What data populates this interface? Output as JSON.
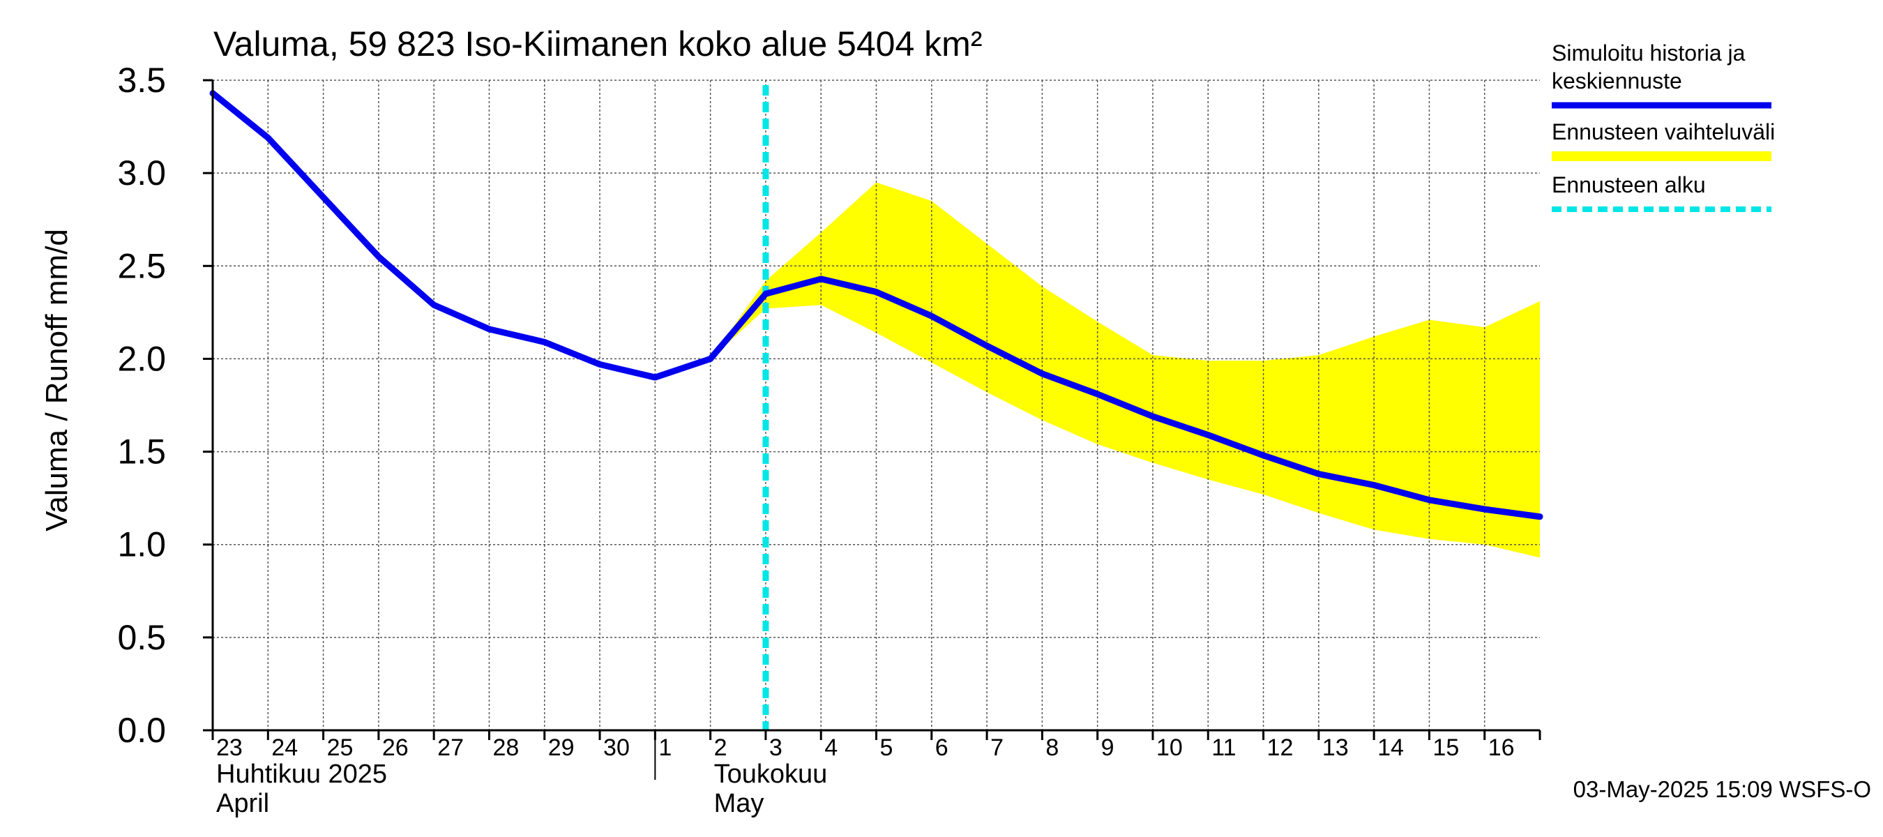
{
  "chart_data": {
    "type": "line",
    "title": "Valuma, 59 823 Iso-Kiimanen koko alue 5404 km²",
    "ylabel": "Valuma / Runoff     mm/d",
    "ylim": [
      0,
      3.5
    ],
    "yticks": [
      "0.0",
      "0.5",
      "1.0",
      "1.5",
      "2.0",
      "2.5",
      "3.0",
      "3.5"
    ],
    "x_range": [
      0,
      24
    ],
    "day_labels": [
      "23",
      "24",
      "25",
      "26",
      "27",
      "28",
      "29",
      "30",
      "1",
      "2",
      "3",
      "4",
      "5",
      "6",
      "7",
      "8",
      "9",
      "10",
      "11",
      "12",
      "13",
      "14",
      "15",
      "16"
    ],
    "month_labels": [
      {
        "line1": "Huhtikuu  2025",
        "line2": "April",
        "x": 0
      },
      {
        "line1": "Toukokuu",
        "line2": "May",
        "x": 9
      }
    ],
    "month_boundary_x": 8,
    "forecast_start_x": 10,
    "series": [
      {
        "name": "Simuloitu historia ja keskiennuste",
        "color": "#0000ee",
        "x": [
          0,
          1,
          2,
          3,
          4,
          5,
          6,
          7,
          8,
          9,
          10,
          11,
          12,
          13,
          14,
          15,
          16,
          17,
          18,
          19,
          20,
          21,
          22,
          23,
          24
        ],
        "values": [
          3.43,
          3.19,
          2.87,
          2.55,
          2.29,
          2.16,
          2.09,
          1.97,
          1.9,
          2.0,
          2.35,
          2.43,
          2.36,
          2.23,
          2.07,
          1.92,
          1.81,
          1.69,
          1.59,
          1.48,
          1.38,
          1.32,
          1.24,
          1.19,
          1.15
        ]
      }
    ],
    "band": {
      "name": "Ennusteen vaihteluväli",
      "color": "#ffff00",
      "x": [
        9,
        10,
        11,
        12,
        13,
        14,
        15,
        16,
        17,
        18,
        19,
        20,
        21,
        22,
        23,
        24
      ],
      "upper": [
        2.0,
        2.42,
        2.68,
        2.95,
        2.85,
        2.62,
        2.39,
        2.2,
        2.02,
        1.99,
        1.99,
        2.02,
        2.12,
        2.21,
        2.17,
        2.31
      ],
      "lower": [
        2.0,
        2.27,
        2.29,
        2.14,
        1.98,
        1.82,
        1.67,
        1.54,
        1.44,
        1.35,
        1.27,
        1.17,
        1.08,
        1.03,
        1.0,
        0.93
      ]
    },
    "legend": [
      {
        "label_lines": [
          "Simuloitu historia ja",
          "keskiennuste"
        ],
        "kind": "line",
        "color": "#0000ee"
      },
      {
        "label_lines": [
          "Ennusteen vaihteluväli"
        ],
        "kind": "band",
        "color": "#ffff00"
      },
      {
        "label_lines": [
          "Ennusteen alku"
        ],
        "kind": "dashed",
        "color": "#00e5e5"
      }
    ],
    "legend_position": "right",
    "footer": "03-May-2025 15:09 WSFS-O"
  }
}
